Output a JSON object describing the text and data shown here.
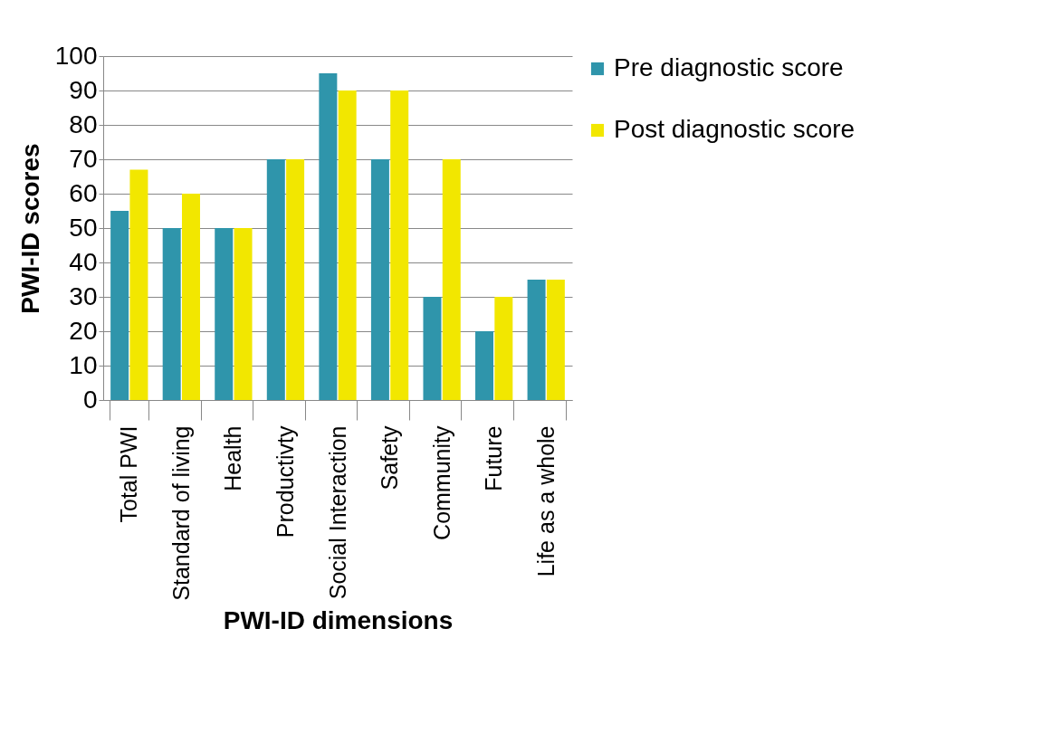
{
  "chart_data": {
    "type": "bar",
    "xlabel": "PWI-ID dimensions",
    "ylabel": "PWI-ID scores",
    "categories": [
      "Total PWI",
      "Standard of living",
      "Health",
      "Productivty",
      "Social Interaction",
      "Safety",
      "Community",
      "Future",
      "Life as a whole"
    ],
    "series": [
      {
        "name": "Pre diagnostic score",
        "color": "#2f95ab",
        "values": [
          55,
          50,
          50,
          70,
          95,
          70,
          30,
          20,
          35
        ]
      },
      {
        "name": "Post diagnostic score",
        "color": "#f2e700",
        "values": [
          67,
          60,
          50,
          70,
          90,
          90,
          70,
          30,
          35
        ]
      }
    ],
    "ylim": [
      0,
      100
    ],
    "yticks": [
      0,
      10,
      20,
      30,
      40,
      50,
      60,
      70,
      80,
      90,
      100
    ],
    "grid": "y",
    "legend": "right"
  }
}
